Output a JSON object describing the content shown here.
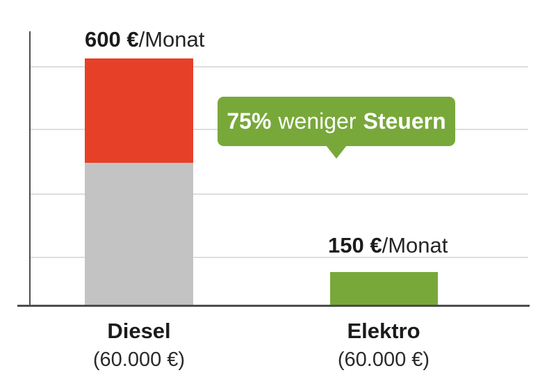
{
  "colors": {
    "red": "#E74028",
    "grey": "#C3C3C3",
    "green": "#78A83A",
    "callout": "#78A83A",
    "grid": "#DEDEDE",
    "axis": "#4D4D4D",
    "text": "#1B1B1B",
    "callout_text": "#FFFFFF",
    "background": "#FFFFFF"
  },
  "diesel": {
    "value": "600 €",
    "unit": "/Monat",
    "name": "Diesel",
    "price": "(60.000 €)"
  },
  "elektro": {
    "value": "150 €",
    "unit": "/Monat",
    "name": "Elektro",
    "price": "(60.000 €)"
  },
  "callout": {
    "lead": "75%",
    "middle": "weniger",
    "tail": "Steuern"
  },
  "chart_data": {
    "type": "bar",
    "categories": [
      "Diesel",
      "Elektro"
    ],
    "category_sublabels": [
      "(60.000 €)",
      "(60.000 €)"
    ],
    "values": [
      600,
      150
    ],
    "unit": "€/Monat",
    "value_labels": [
      "600 €/Monat",
      "150 €/Monat"
    ],
    "annotation": "75% weniger Steuern",
    "bars": [
      {
        "category": "Diesel",
        "value": 600,
        "segments": [
          {
            "position": "top",
            "color": "#E74028"
          },
          {
            "position": "bottom",
            "color": "#C3C3C3"
          }
        ]
      },
      {
        "category": "Elektro",
        "value": 150,
        "segments": [
          {
            "position": "full",
            "color": "#78A83A"
          }
        ]
      }
    ],
    "xlabel": "",
    "ylabel": "",
    "y_axis_tick_labels": [],
    "grid": true,
    "legend": false
  }
}
